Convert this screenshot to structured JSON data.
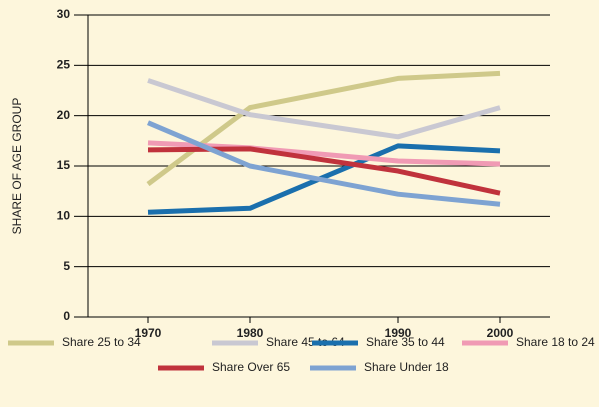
{
  "chart_data": {
    "type": "line",
    "y_label": "SHARE OF AGE GROUP",
    "categories": [
      "1970",
      "1980",
      "1990",
      "2000"
    ],
    "ylim": [
      0,
      30
    ],
    "yticks": [
      0,
      5,
      10,
      15,
      20,
      25,
      30
    ],
    "grid": true,
    "series": [
      {
        "name": "Share 25 to 34",
        "color": "#cfc98a",
        "values": [
          13.2,
          20.8,
          23.7,
          24.2
        ]
      },
      {
        "name": "Share 45 to 64",
        "color": "#c9c8d2",
        "values": [
          23.5,
          20.1,
          17.9,
          20.8
        ]
      },
      {
        "name": "Share 35 to 44",
        "color": "#1a6fad",
        "values": [
          10.4,
          10.8,
          17.0,
          16.5
        ]
      },
      {
        "name": "Share  18 to 24",
        "color": "#f09ab4",
        "values": [
          17.3,
          16.8,
          15.5,
          15.2
        ]
      },
      {
        "name": "Share Over 65",
        "color": "#c0323c",
        "values": [
          16.6,
          16.7,
          14.5,
          12.3
        ]
      },
      {
        "name": "Share Under 18",
        "color": "#7ea3d2",
        "values": [
          19.3,
          15.0,
          12.2,
          11.2
        ]
      }
    ]
  }
}
